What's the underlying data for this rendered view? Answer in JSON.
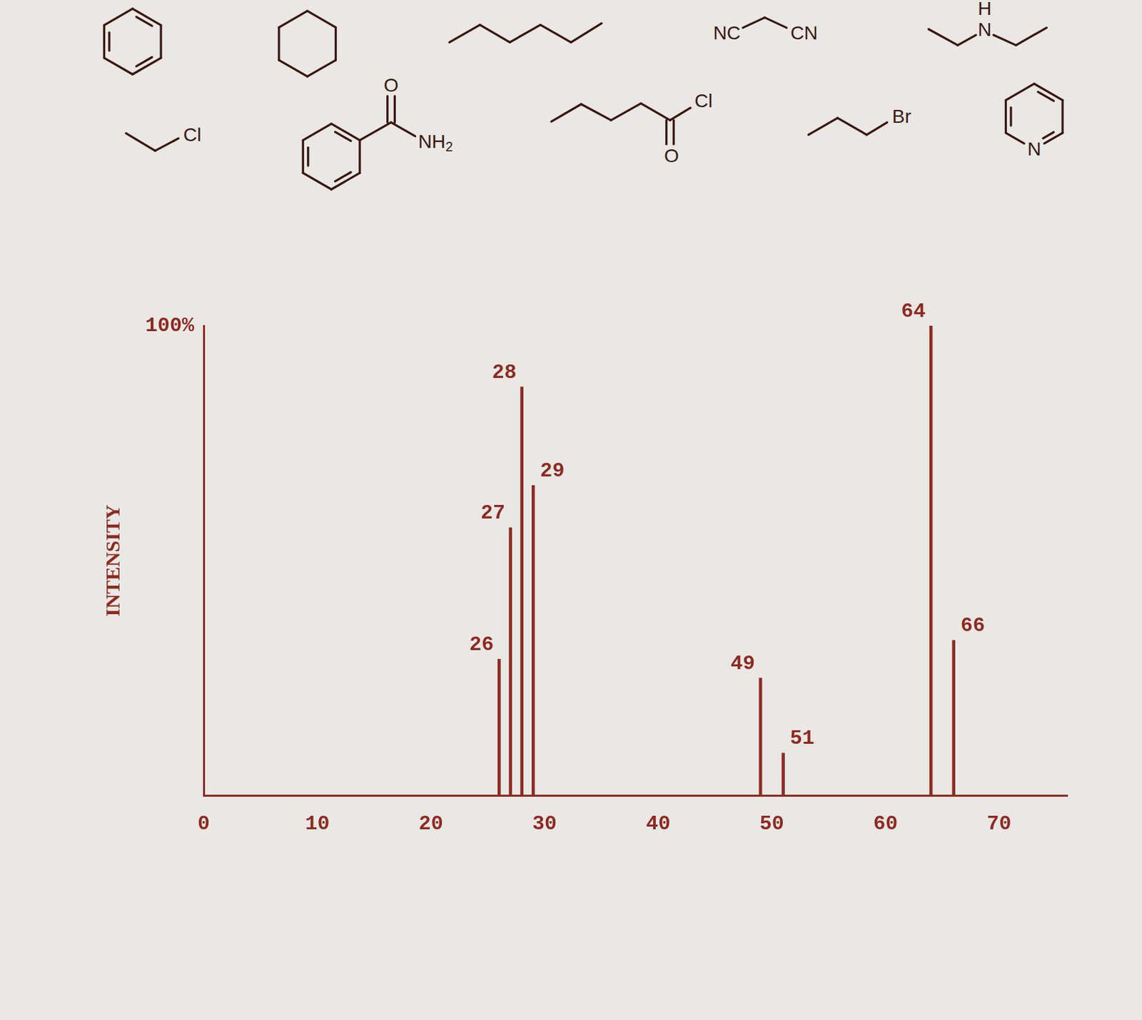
{
  "chart_data": {
    "type": "bar",
    "x_label": null,
    "y_label": "INTENSITY",
    "x": [
      26,
      27,
      28,
      29,
      49,
      51,
      64,
      66
    ],
    "values": [
      29,
      57,
      87,
      66,
      25,
      9,
      100,
      33
    ],
    "color": "#8e2a22",
    "xlim": [
      0,
      76
    ],
    "xticks": [
      0,
      10,
      20,
      30,
      40,
      50,
      60,
      70
    ],
    "ylim": [
      0,
      100
    ],
    "yticks": [
      {
        "value": 100,
        "label": "100%"
      }
    ],
    "grid": false,
    "data_labels": true
  },
  "structures": [
    {
      "atoms": []
    },
    {
      "atoms": []
    },
    {
      "atoms": []
    },
    {
      "atoms": [
        "NC",
        "CN"
      ]
    },
    {
      "atoms": [
        "H",
        "N"
      ]
    },
    {
      "atoms": [
        "Cl"
      ]
    },
    {
      "atoms": [
        "O",
        "NH2"
      ]
    },
    {
      "atoms": [
        "Cl",
        "O"
      ]
    },
    {
      "atoms": [
        "Br"
      ]
    },
    {
      "atoms": [
        "N"
      ]
    }
  ]
}
